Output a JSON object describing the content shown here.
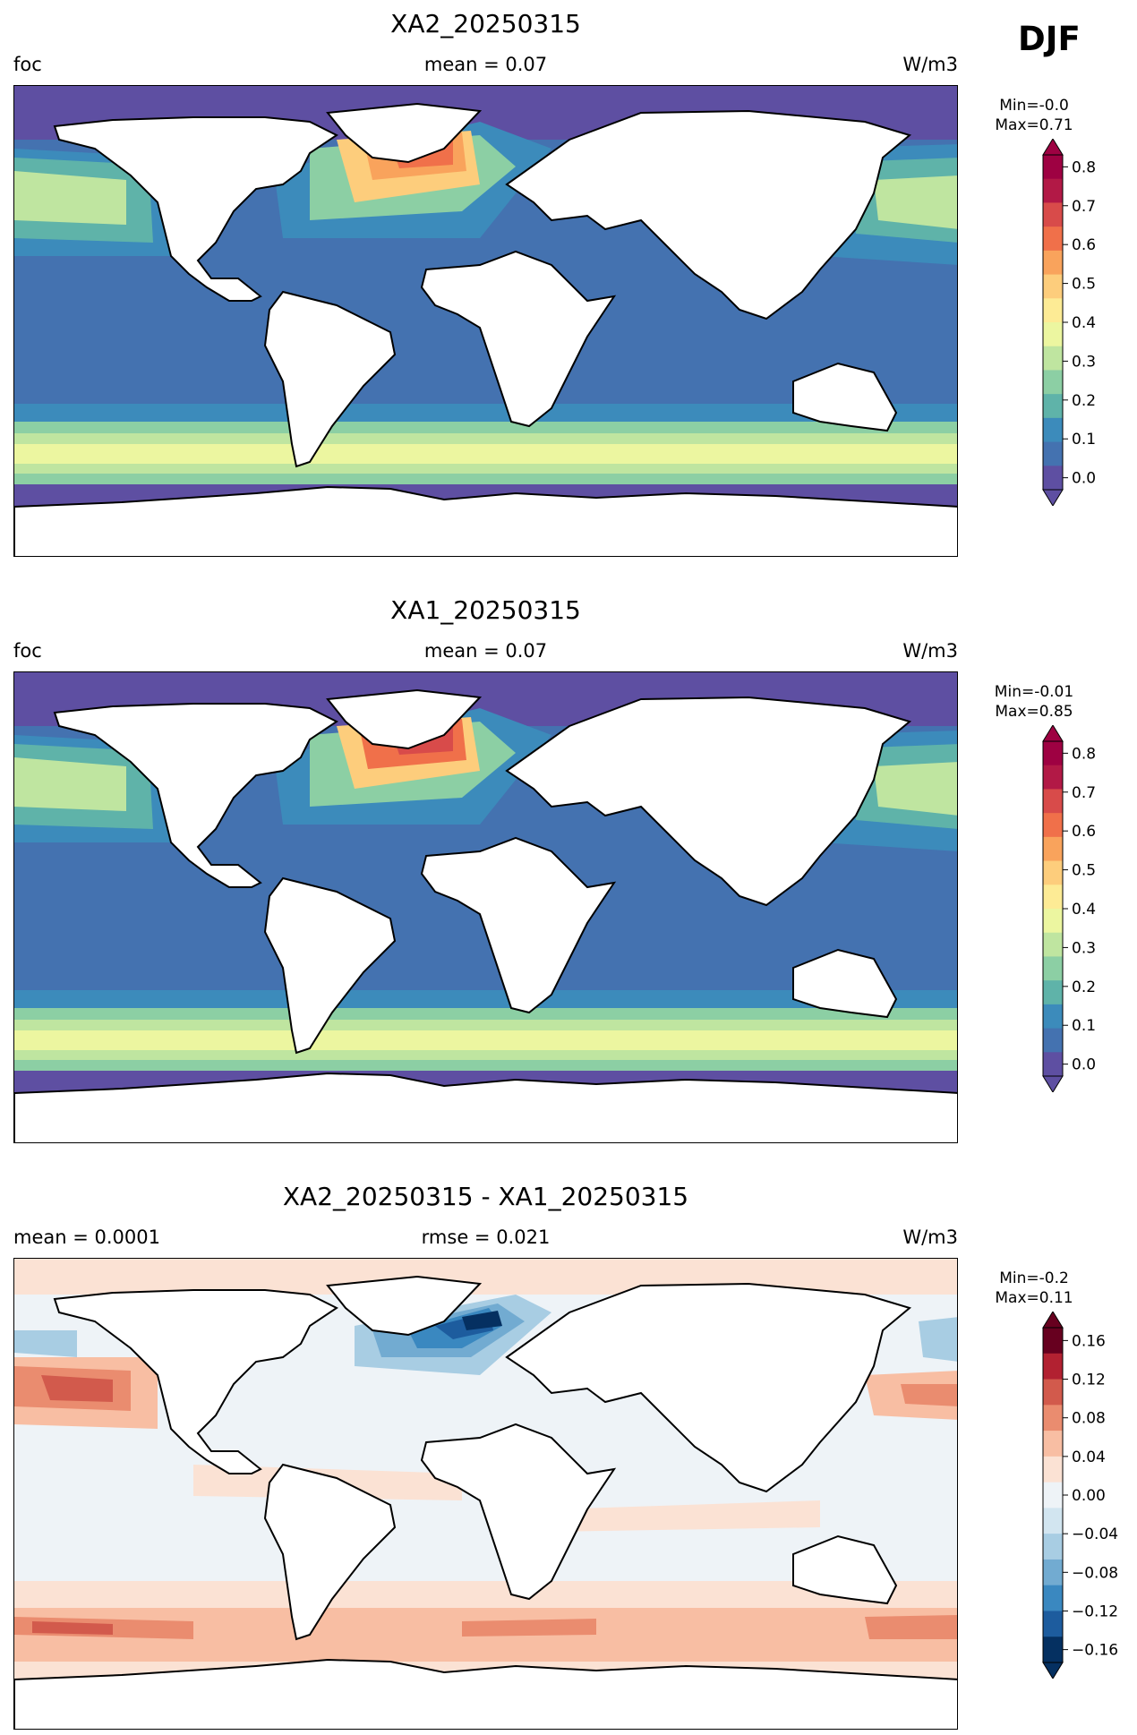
{
  "season": "DJF",
  "panels": [
    {
      "title": "XA2_20250315",
      "left_label": "foc",
      "center_label": "mean = 0.07",
      "units": "W/m3",
      "min_label": "Min=-0.0",
      "max_label": "Max=0.71",
      "colormap": "Spectral_r",
      "colorbar_ticks": [
        "0.0",
        "0.1",
        "0.2",
        "0.3",
        "0.4",
        "0.5",
        "0.6",
        "0.7",
        "0.8"
      ]
    },
    {
      "title": "XA1_20250315",
      "left_label": "foc",
      "center_label": "mean = 0.07",
      "units": "W/m3",
      "min_label": "Min=-0.01",
      "max_label": "Max=0.85",
      "colormap": "Spectral_r",
      "colorbar_ticks": [
        "0.0",
        "0.1",
        "0.2",
        "0.3",
        "0.4",
        "0.5",
        "0.6",
        "0.7",
        "0.8"
      ]
    },
    {
      "title": "XA2_20250315 - XA1_20250315",
      "left_label": "mean = 0.0001",
      "center_label": "rmse = 0.021",
      "units": "W/m3",
      "min_label": "Min=-0.2",
      "max_label": "Max=0.11",
      "colormap": "RdBu_r",
      "colorbar_ticks": [
        "−0.16",
        "−0.12",
        "−0.08",
        "−0.04",
        "0.00",
        "0.04",
        "0.08",
        "0.12",
        "0.16"
      ]
    }
  ],
  "colors": {
    "seq": [
      "#5e4fa2",
      "#4472b0",
      "#3c8bbb",
      "#5fb3a9",
      "#8ccfa4",
      "#bfe5a0",
      "#ecf6a0",
      "#fdeb95",
      "#fdcd7c",
      "#f9a35c",
      "#f0704a",
      "#d84b4a",
      "#b21946",
      "#9e0142"
    ],
    "div": [
      "#053061",
      "#1d5c9e",
      "#3a88c0",
      "#72abd1",
      "#a8cde3",
      "#d2e5f0",
      "#eef3f7",
      "#fbe2d4",
      "#f8bea3",
      "#ea8c6f",
      "#d25a4c",
      "#b22131",
      "#67001f"
    ]
  }
}
